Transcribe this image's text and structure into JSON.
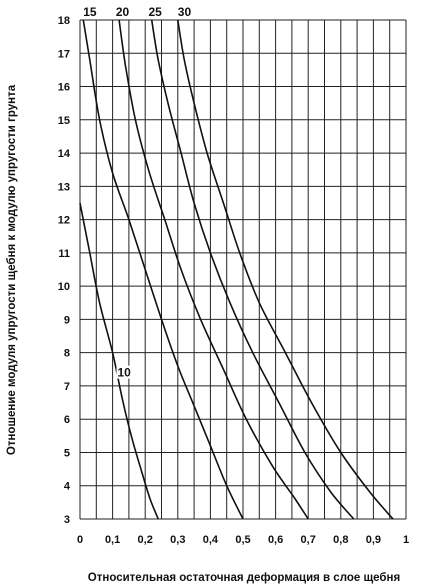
{
  "chart_data": {
    "type": "line",
    "xlabel": "Относительная остаточная деформация в слое щебня",
    "ylabel": "Отношение модуля упругости щебня к модулю упругости грунта",
    "xlim": [
      0,
      1
    ],
    "ylim": [
      3,
      18
    ],
    "x_ticks": [
      "0",
      "0,1",
      "0,2",
      "0,3",
      "0,4",
      "0,5",
      "0,6",
      "0,7",
      "0,8",
      "0,9",
      "1"
    ],
    "y_ticks": [
      "3",
      "4",
      "5",
      "6",
      "7",
      "8",
      "9",
      "10",
      "11",
      "12",
      "13",
      "14",
      "15",
      "16",
      "17",
      "18"
    ],
    "grid": true,
    "series": [
      {
        "name": "10",
        "label_at": [
          0.115,
          7.4
        ],
        "points": [
          [
            0.0,
            12.5
          ],
          [
            0.03,
            11.0
          ],
          [
            0.06,
            9.5
          ],
          [
            0.1,
            8.0
          ],
          [
            0.13,
            6.6
          ],
          [
            0.16,
            5.4
          ],
          [
            0.19,
            4.4
          ],
          [
            0.215,
            3.6
          ],
          [
            0.24,
            3.0
          ]
        ]
      },
      {
        "name": "15",
        "label_at": [
          0.01,
          18.2
        ],
        "points": [
          [
            0.01,
            18.0
          ],
          [
            0.03,
            16.8
          ],
          [
            0.06,
            15.0
          ],
          [
            0.1,
            13.4
          ],
          [
            0.15,
            12.0
          ],
          [
            0.2,
            10.5
          ],
          [
            0.25,
            9.0
          ],
          [
            0.3,
            7.6
          ],
          [
            0.35,
            6.4
          ],
          [
            0.4,
            5.2
          ],
          [
            0.45,
            4.0
          ],
          [
            0.5,
            3.0
          ]
        ]
      },
      {
        "name": "20",
        "label_at": [
          0.11,
          18.2
        ],
        "points": [
          [
            0.12,
            18.0
          ],
          [
            0.14,
            16.6
          ],
          [
            0.17,
            15.0
          ],
          [
            0.21,
            13.5
          ],
          [
            0.26,
            12.0
          ],
          [
            0.31,
            10.5
          ],
          [
            0.37,
            9.0
          ],
          [
            0.44,
            7.5
          ],
          [
            0.51,
            6.0
          ],
          [
            0.59,
            4.6
          ],
          [
            0.66,
            3.6
          ],
          [
            0.7,
            3.0
          ]
        ]
      },
      {
        "name": "25",
        "label_at": [
          0.21,
          18.2
        ],
        "points": [
          [
            0.22,
            18.0
          ],
          [
            0.24,
            16.8
          ],
          [
            0.27,
            15.5
          ],
          [
            0.31,
            14.0
          ],
          [
            0.35,
            12.5
          ],
          [
            0.4,
            11.0
          ],
          [
            0.46,
            9.5
          ],
          [
            0.53,
            8.0
          ],
          [
            0.61,
            6.5
          ],
          [
            0.69,
            5.0
          ],
          [
            0.77,
            3.8
          ],
          [
            0.84,
            3.0
          ]
        ]
      },
      {
        "name": "30",
        "label_at": [
          0.3,
          18.2
        ],
        "points": [
          [
            0.3,
            18.0
          ],
          [
            0.32,
            16.8
          ],
          [
            0.35,
            15.5
          ],
          [
            0.39,
            14.0
          ],
          [
            0.44,
            12.5
          ],
          [
            0.49,
            11.0
          ],
          [
            0.55,
            9.5
          ],
          [
            0.63,
            8.0
          ],
          [
            0.71,
            6.5
          ],
          [
            0.8,
            5.0
          ],
          [
            0.89,
            3.8
          ],
          [
            0.96,
            3.0
          ]
        ]
      }
    ]
  }
}
